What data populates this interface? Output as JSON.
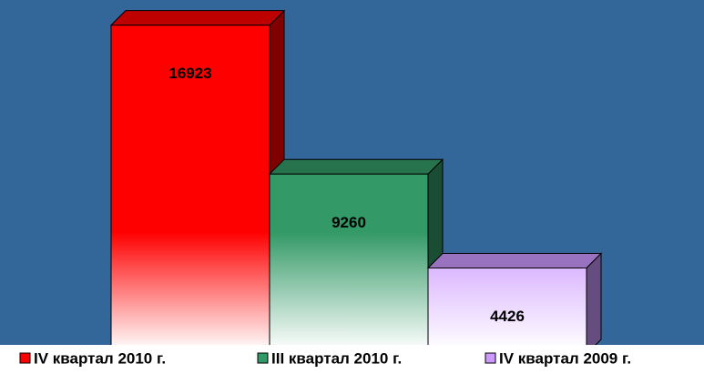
{
  "chart_data": {
    "type": "bar3d",
    "series": [
      {
        "name": "IV квартал 2010 г.",
        "color": "#ff0000",
        "values": [
          16923
        ]
      },
      {
        "name": "III квартал 2010 г.",
        "color": "#339966",
        "values": [
          9260
        ]
      },
      {
        "name": "IV квартал 2009 г.",
        "color": "#cc99ff",
        "values": [
          4426
        ]
      }
    ],
    "ylim": [
      0,
      17000
    ],
    "legend": "bottom",
    "background": "#336699"
  }
}
